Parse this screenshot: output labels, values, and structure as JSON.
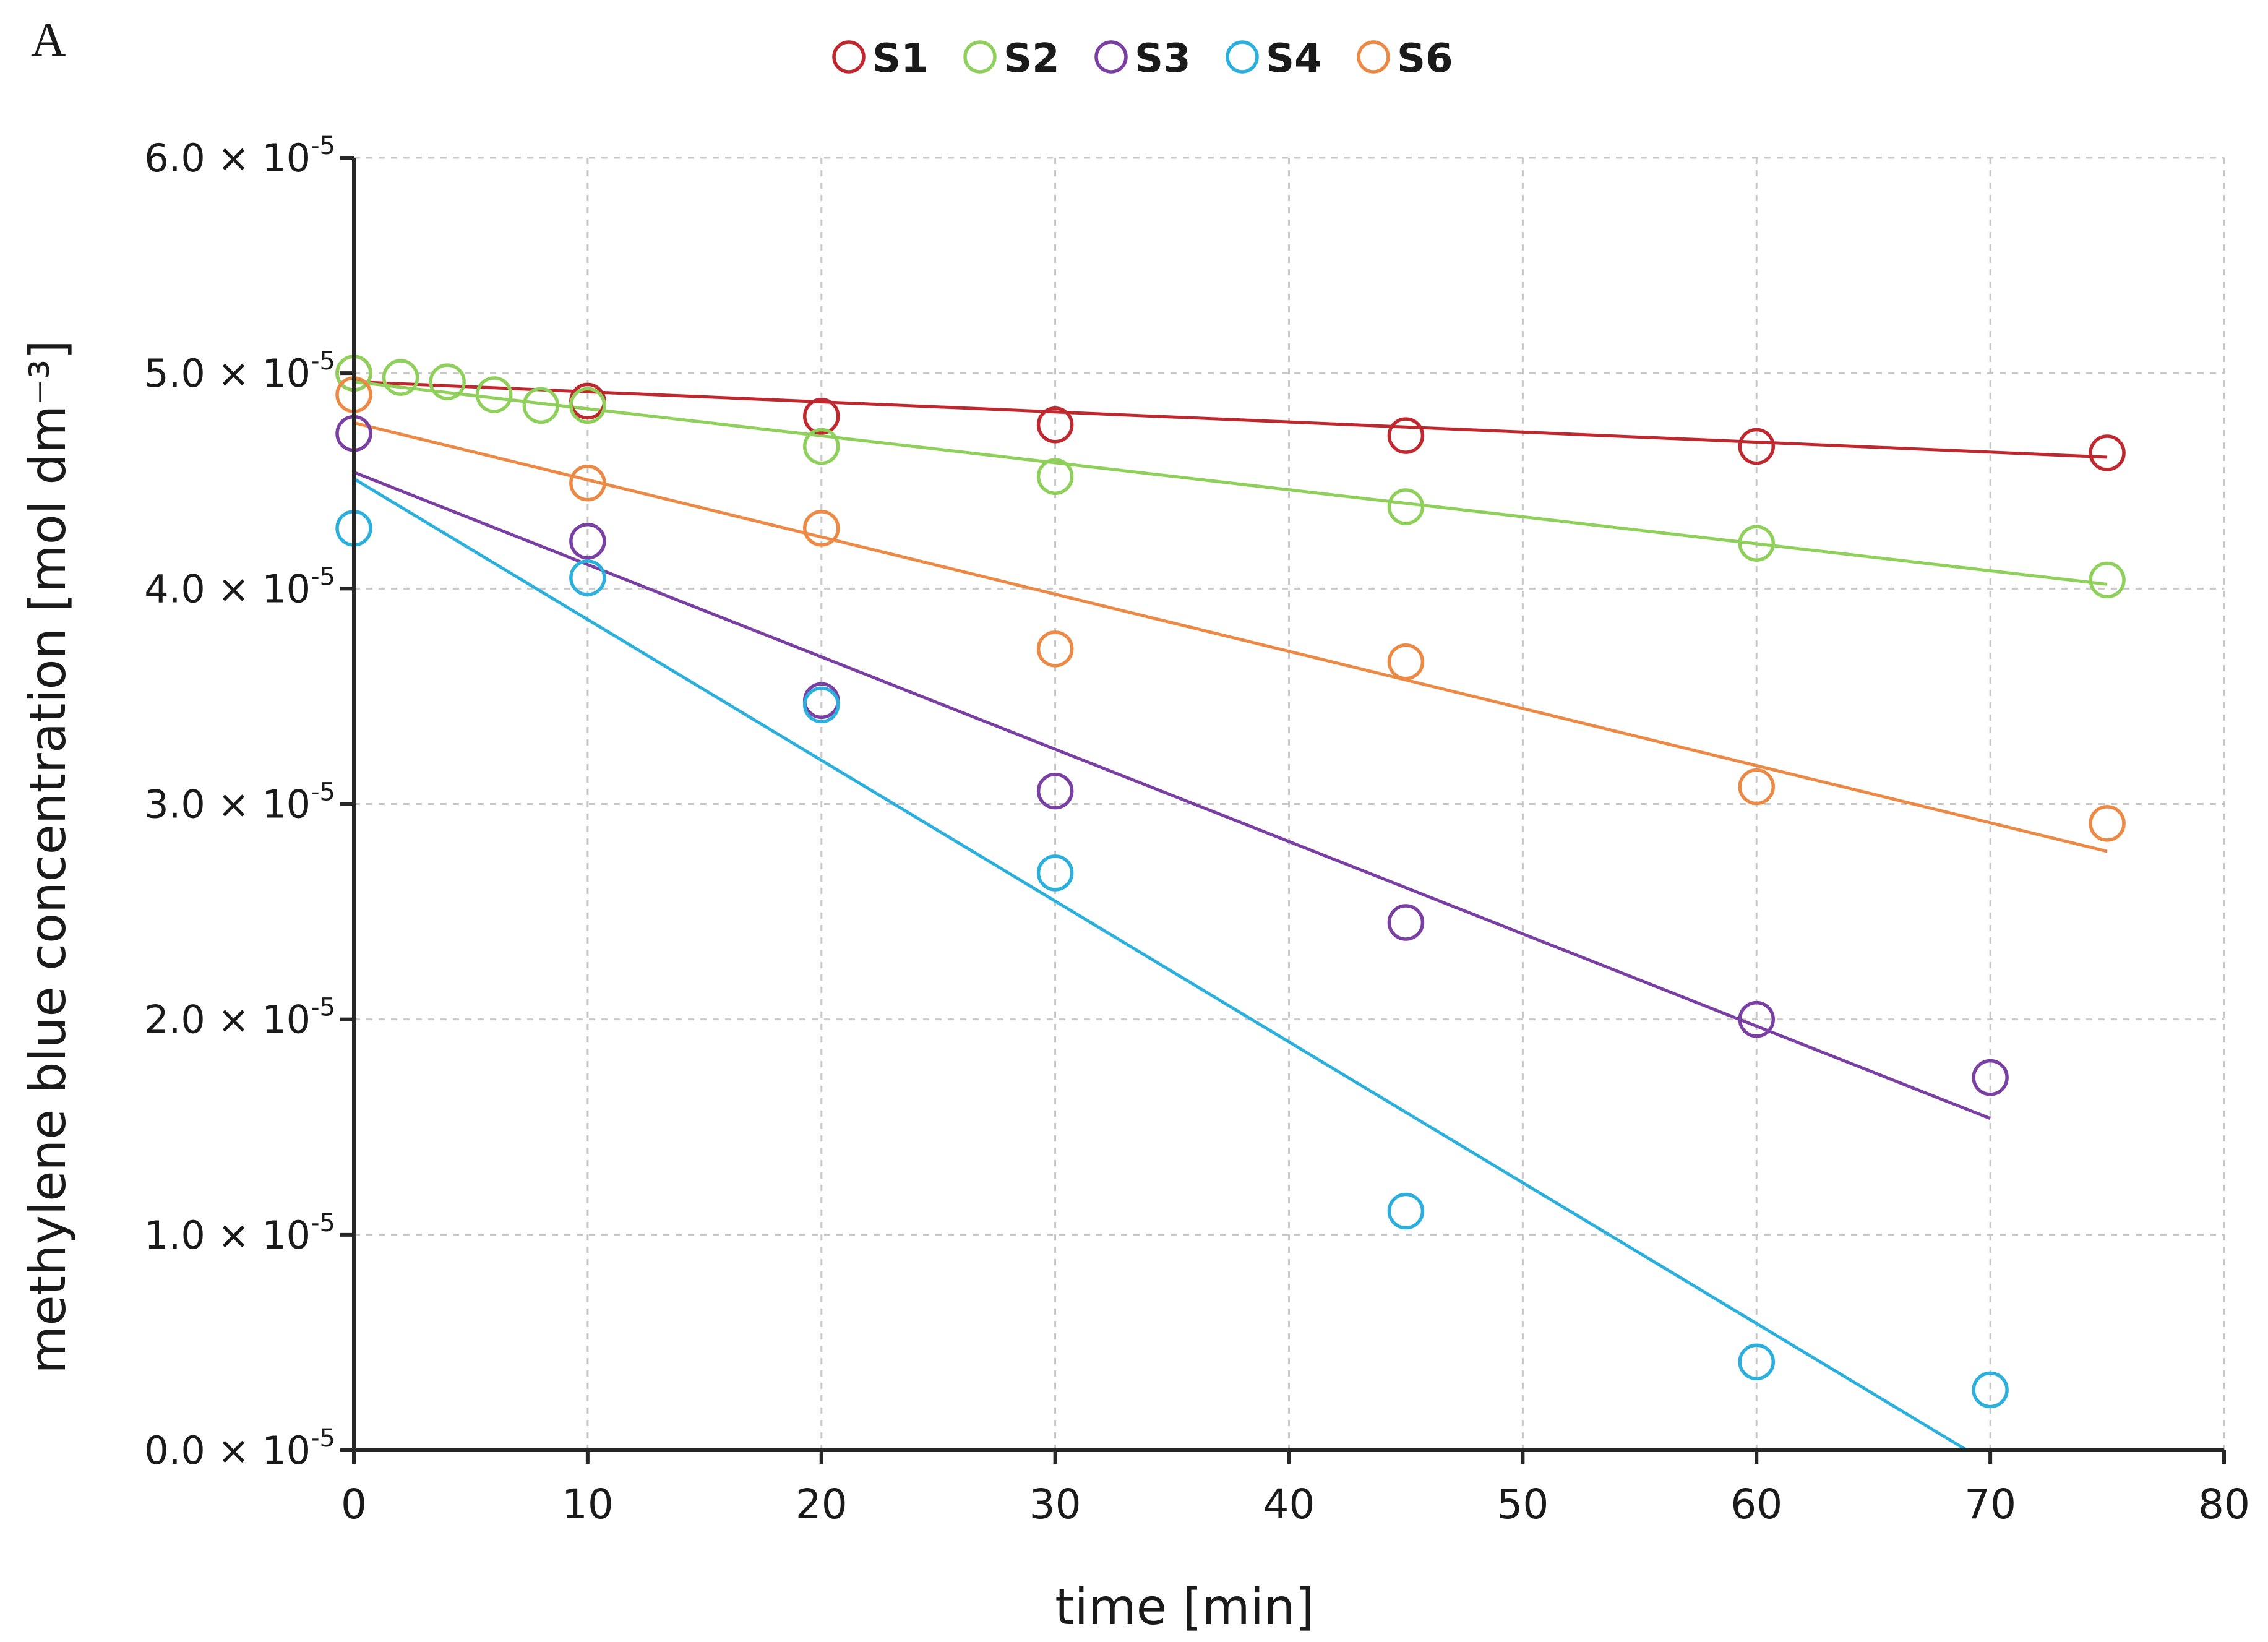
{
  "chart_data": {
    "type": "scatter",
    "panel_label": "A",
    "title": "",
    "xlabel": "time [min]",
    "ylabel": "methylene blue concentration [mol dm⁻³]",
    "xlim": [
      0,
      80
    ],
    "ylim": [
      0,
      6.0
    ],
    "y_scale_note": "values in units of 10^-5 mol dm^-3",
    "x_ticks": [
      "0",
      "10",
      "20",
      "30",
      "40",
      "50",
      "60",
      "70",
      "80"
    ],
    "y_ticks": [
      {
        "mantissa": "0.0",
        "times": " × 10",
        "exp": "-5"
      },
      {
        "mantissa": "1.0",
        "times": " × 10",
        "exp": "-5"
      },
      {
        "mantissa": "2.0",
        "times": " × 10",
        "exp": "-5"
      },
      {
        "mantissa": "3.0",
        "times": " × 10",
        "exp": "-5"
      },
      {
        "mantissa": "4.0",
        "times": " × 10",
        "exp": "-5"
      },
      {
        "mantissa": "5.0",
        "times": " × 10",
        "exp": "-5"
      },
      {
        "mantissa": "6.0",
        "times": " × 10",
        "exp": "-5"
      }
    ],
    "grid": true,
    "legend_position": "top-center",
    "series": [
      {
        "name": "S1",
        "color": "#c0282f",
        "x": [
          0,
          10,
          20,
          30,
          45,
          60,
          75
        ],
        "y": [
          5.0,
          4.87,
          4.8,
          4.76,
          4.71,
          4.66,
          4.63
        ],
        "fit": {
          "x": [
            0,
            75
          ],
          "y": [
            4.96,
            4.61
          ]
        }
      },
      {
        "name": "S2",
        "color": "#8fd05a",
        "x": [
          0,
          2,
          4,
          6,
          8,
          10,
          20,
          30,
          45,
          60,
          75
        ],
        "y": [
          5.0,
          4.98,
          4.96,
          4.9,
          4.85,
          4.85,
          4.66,
          4.52,
          4.38,
          4.21,
          4.04
        ],
        "fit": {
          "x": [
            0,
            75
          ],
          "y": [
            4.96,
            4.02
          ]
        }
      },
      {
        "name": "S3",
        "color": "#7a3fa3",
        "x": [
          0,
          10,
          20,
          30,
          45,
          60,
          70
        ],
        "y": [
          4.72,
          4.22,
          3.48,
          3.06,
          2.45,
          2.0,
          1.73
        ],
        "fit": {
          "x": [
            0,
            70
          ],
          "y": [
            4.54,
            1.54
          ]
        }
      },
      {
        "name": "S4",
        "color": "#2bb0de",
        "x": [
          0,
          10,
          20,
          30,
          45,
          60,
          70
        ],
        "y": [
          4.28,
          4.05,
          3.46,
          2.68,
          1.11,
          0.41,
          0.28
        ],
        "fit": {
          "x": [
            0,
            69
          ],
          "y": [
            4.51,
            0.0
          ]
        }
      },
      {
        "name": "S6",
        "color": "#ec8a45",
        "x": [
          0,
          10,
          20,
          30,
          45,
          60,
          75
        ],
        "y": [
          4.9,
          4.49,
          4.28,
          3.72,
          3.66,
          3.08,
          2.91
        ],
        "fit": {
          "x": [
            0,
            75
          ],
          "y": [
            4.77,
            2.78
          ]
        }
      }
    ]
  }
}
